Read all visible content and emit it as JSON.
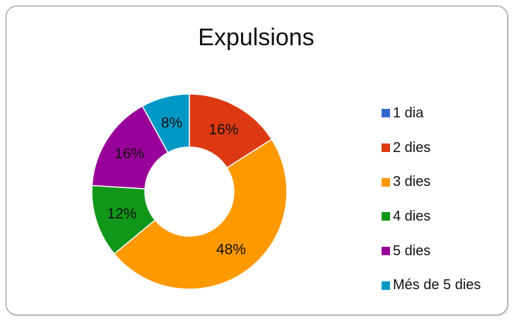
{
  "chart_data": {
    "type": "pie",
    "title": "Expulsions",
    "categories": [
      "1 dia",
      "2 dies",
      "3 dies",
      "4 dies",
      "5 dies",
      "Més de 5 dies"
    ],
    "values": [
      0,
      16,
      48,
      12,
      16,
      8
    ],
    "data_labels": [
      "",
      "16%",
      "48%",
      "12%",
      "16%",
      "8%"
    ],
    "colors": [
      "#3366cc",
      "#dc3912",
      "#ff9900",
      "#109618",
      "#990099",
      "#0099c6"
    ],
    "donut": true,
    "legend_position": "right"
  }
}
